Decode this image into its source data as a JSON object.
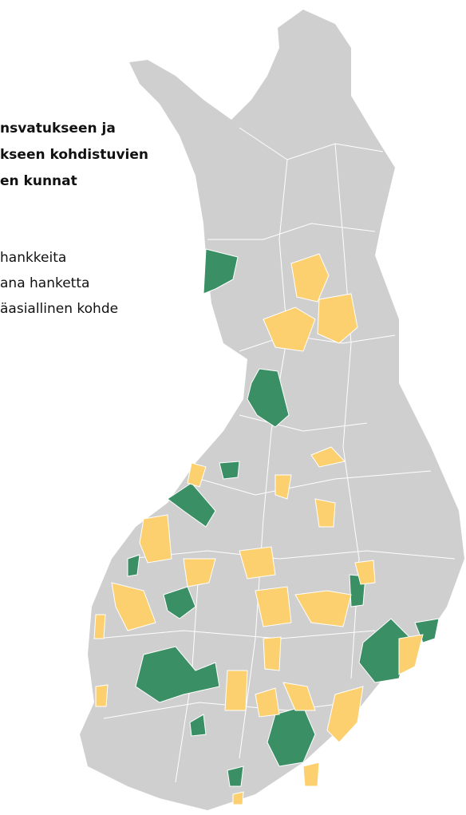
{
  "title_lines": [
    "nsvatukseen ja",
    "kseen kohdistuvien",
    "en kunnat"
  ],
  "legend": [
    "hankkeita",
    "ana hanketta",
    "äasiallinen kohde"
  ]
}
